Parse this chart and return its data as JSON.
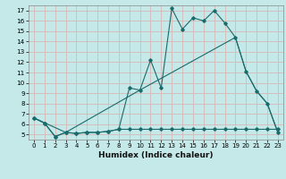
{
  "bg_color": "#c5e8e8",
  "line_color": "#1a6b6b",
  "grid_color": "#e8f5f5",
  "xlim": [
    -0.5,
    23.5
  ],
  "ylim": [
    4.5,
    17.5
  ],
  "xticks": [
    0,
    1,
    2,
    3,
    4,
    5,
    6,
    7,
    8,
    9,
    10,
    11,
    12,
    13,
    14,
    15,
    16,
    17,
    18,
    19,
    20,
    21,
    22,
    23
  ],
  "yticks": [
    5,
    6,
    7,
    8,
    9,
    10,
    11,
    12,
    13,
    14,
    15,
    16,
    17
  ],
  "xlabel": "Humidex (Indice chaleur)",
  "line1_x": [
    0,
    1,
    2,
    3,
    4,
    5,
    6,
    7,
    8,
    9,
    10,
    11,
    12,
    13,
    14,
    15,
    16,
    17,
    18,
    19,
    20,
    21,
    22,
    23
  ],
  "line1_y": [
    6.6,
    6.1,
    4.8,
    5.2,
    5.1,
    5.2,
    5.2,
    5.3,
    5.5,
    9.5,
    9.3,
    12.2,
    9.5,
    17.2,
    15.2,
    16.3,
    16.0,
    17.0,
    15.8,
    14.4,
    11.1,
    9.2,
    8.0,
    5.2
  ],
  "line2_x": [
    0,
    1,
    2,
    3,
    4,
    5,
    6,
    7,
    8,
    9,
    10,
    11,
    12,
    13,
    14,
    15,
    16,
    17,
    18,
    19,
    20,
    21,
    22,
    23
  ],
  "line2_y": [
    6.6,
    6.1,
    4.8,
    5.2,
    5.1,
    5.2,
    5.2,
    5.3,
    5.5,
    5.5,
    5.5,
    5.5,
    5.5,
    5.5,
    5.5,
    5.5,
    5.5,
    5.5,
    5.5,
    5.5,
    5.5,
    5.5,
    5.5,
    5.5
  ],
  "line3_x": [
    0,
    3,
    10,
    19,
    20,
    21,
    22,
    23
  ],
  "line3_y": [
    6.6,
    5.2,
    9.3,
    14.4,
    11.1,
    9.2,
    8.0,
    5.2
  ]
}
